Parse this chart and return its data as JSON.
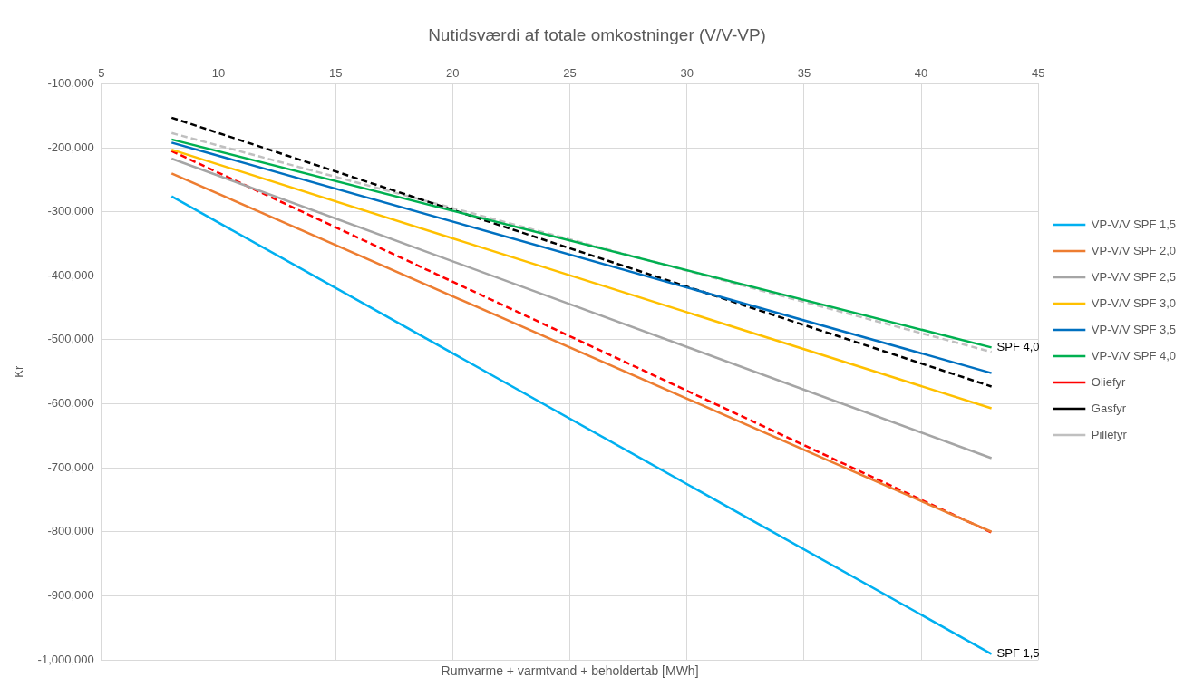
{
  "chart_data": {
    "type": "line",
    "title": "Nutidsværdi af totale omkostninger (V/V-VP)",
    "xlabel": "Rumvarme + varmtvand + beholdertab [MWh]",
    "ylabel": "Kr",
    "x": [
      8,
      43
    ],
    "xlim": [
      5,
      45
    ],
    "xticks": [
      5,
      10,
      15,
      20,
      25,
      30,
      35,
      40,
      45
    ],
    "ylim": [
      -1000000,
      -100000
    ],
    "yticks": [
      {
        "value": -1000000,
        "label": "-1,000,000"
      },
      {
        "value": -900000,
        "label": "-900,000"
      },
      {
        "value": -800000,
        "label": "-800,000"
      },
      {
        "value": -700000,
        "label": "-700,000"
      },
      {
        "value": -600000,
        "label": "-600,000"
      },
      {
        "value": -500000,
        "label": "-500,000"
      },
      {
        "value": -400000,
        "label": "-400,000"
      },
      {
        "value": -300000,
        "label": "-300,000"
      },
      {
        "value": -200000,
        "label": "-200,000"
      },
      {
        "value": -100000,
        "label": "-100,000"
      }
    ],
    "grid": true,
    "legend": "right",
    "marker": "none",
    "series": [
      {
        "name": "VP-V/V SPF 1,5",
        "color": "#00b0f0",
        "values": [
          -276000,
          -991000
        ],
        "line_style": "solid"
      },
      {
        "name": "VP-V/V SPF 2,0",
        "color": "#ed7d31",
        "values": [
          -240000,
          -800000
        ],
        "line_style": "solid"
      },
      {
        "name": "VP-V/V SPF 2,5",
        "color": "#a5a5a5",
        "values": [
          -217000,
          -685000
        ],
        "line_style": "solid"
      },
      {
        "name": "VP-V/V SPF 3,0",
        "color": "#ffc000",
        "values": [
          -203000,
          -607000
        ],
        "line_style": "solid"
      },
      {
        "name": "VP-V/V SPF 3,5",
        "color": "#0070c0",
        "values": [
          -192000,
          -552000
        ],
        "line_style": "solid"
      },
      {
        "name": "VP-V/V SPF 4,0",
        "color": "#00b050",
        "values": [
          -187000,
          -512000
        ],
        "line_style": "solid"
      },
      {
        "name": "Oliefyr",
        "color": "#ff0000",
        "values": [
          -205000,
          -801000
        ],
        "line_style": "dashed"
      },
      {
        "name": "Gasfyr",
        "color": "#000000",
        "values": [
          -153000,
          -573000
        ],
        "line_style": "dashed"
      },
      {
        "name": "Pillefyr",
        "color": "#c0c0c0",
        "values": [
          -177000,
          -519000
        ],
        "line_style": "dashed"
      }
    ],
    "annotations": [
      {
        "text": "SPF 4,0",
        "x": 43,
        "y": -512000
      },
      {
        "text": "SPF 1,5",
        "x": 43,
        "y": -991000
      }
    ]
  }
}
